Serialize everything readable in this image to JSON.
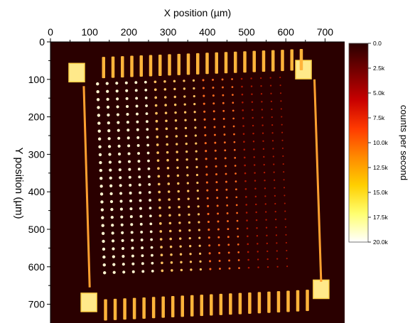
{
  "chart_data": {
    "type": "heatmap",
    "title": "",
    "xlabel": "X position (µm)",
    "ylabel": "Y position (µm)",
    "xlim": [
      0,
      750
    ],
    "ylim": [
      0,
      750
    ],
    "y_inverted": true,
    "x_axis_position": "top",
    "x_ticks": [
      0,
      100,
      200,
      300,
      400,
      500,
      600,
      700
    ],
    "x_tick_labels": [
      "0",
      "100",
      "200",
      "300",
      "400",
      "500",
      "600",
      "700"
    ],
    "y_ticks": [
      0,
      100,
      200,
      300,
      400,
      500,
      600,
      700
    ],
    "y_tick_labels": [
      "0",
      "100",
      "200",
      "300",
      "400",
      "500",
      "600",
      "700"
    ],
    "grid": false,
    "colorbar": {
      "label": "counts per second",
      "range": [
        0,
        20000
      ],
      "ticks": [
        0,
        2500,
        5000,
        7500,
        10000,
        12500,
        15000,
        17500,
        20000
      ],
      "tick_labels": [
        "0.0",
        "2.5k",
        "5.0k",
        "7.5k",
        "10.0k",
        "12.5k",
        "15.0k",
        "17.5k",
        "20.0k"
      ],
      "colormap": [
        "#2a0000",
        "#780000",
        "#c80000",
        "#ff3a00",
        "#ff8a00",
        "#ffcf00",
        "#ffff70",
        "#ffffff"
      ]
    },
    "background_color": "#2a0000"
  }
}
